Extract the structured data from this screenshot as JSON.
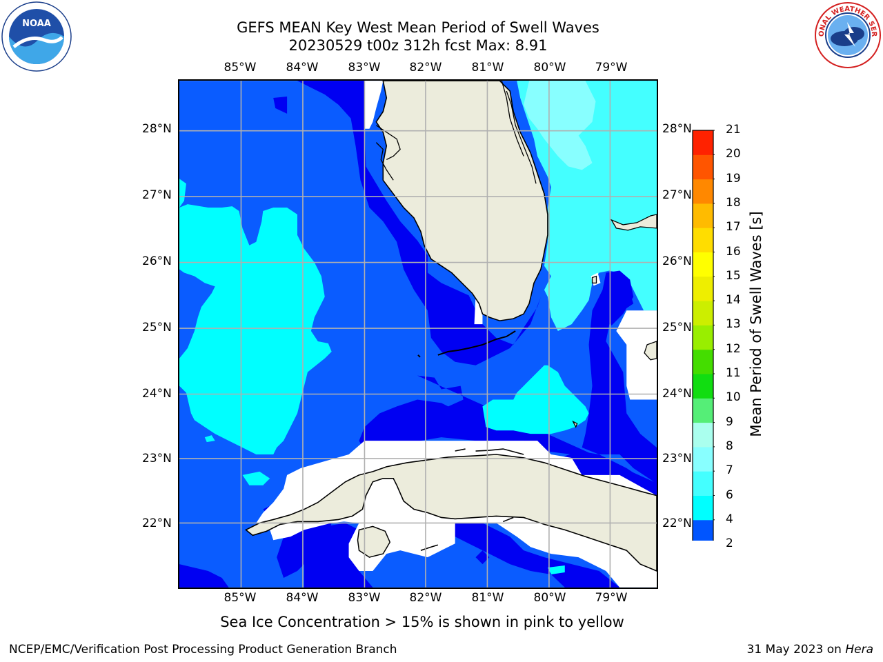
{
  "header": {
    "title_line1": "GEFS MEAN Key West Mean Period of Swell Waves",
    "title_line2": "20230529 t00z 312h fcst   Max: 8.91"
  },
  "logos": {
    "left": {
      "name": "noaa-logo",
      "text": "NOAA"
    },
    "right": {
      "name": "nws-logo",
      "text": "NATIONAL WEATHER SERVICE"
    }
  },
  "map": {
    "lon_labels": [
      "85°W",
      "84°W",
      "83°W",
      "82°W",
      "81°W",
      "80°W",
      "79°W"
    ],
    "lat_labels": [
      "28°N",
      "27°N",
      "26°N",
      "25°N",
      "24°N",
      "23°N",
      "22°N"
    ],
    "extent": {
      "lon_min": -86.0,
      "lon_max": -78.25,
      "lat_min": 21.0,
      "lat_max": 28.75
    },
    "land_color": "#ececdc",
    "no_data_color": "#ffffff"
  },
  "colorbar": {
    "label": "Mean Period of Swell Waves [s]",
    "ticks": [
      "2",
      "4",
      "6",
      "7",
      "8",
      "9",
      "10",
      "11",
      "12",
      "13",
      "14",
      "15",
      "16",
      "17",
      "18",
      "19",
      "20",
      "21"
    ],
    "colors": [
      "#0055ff",
      "#00ffff",
      "#44ffff",
      "#88ffff",
      "#aaffee",
      "#55ee77",
      "#11dd11",
      "#44dd00",
      "#99ee00",
      "#ccee00",
      "#eeee00",
      "#ffff00",
      "#ffdd00",
      "#ffbb00",
      "#ff8800",
      "#ff5500",
      "#ff2200"
    ],
    "under_color": "#0000ee"
  },
  "colors": {
    "deep_blue": "#0000f2",
    "blue": "#0a5cff",
    "cyan": "#00ffff",
    "light_cyan": "#44ffff",
    "pale_cyan": "#88ffff"
  },
  "notes": {
    "sea_ice": "Sea Ice Concentration > 15% is shown in pink to yellow"
  },
  "footer": {
    "left": "NCEP/EMC/Verification Post Processing Product Generation Branch",
    "right_prefix": "31 May 2023 on ",
    "right_italic": "Hera"
  }
}
